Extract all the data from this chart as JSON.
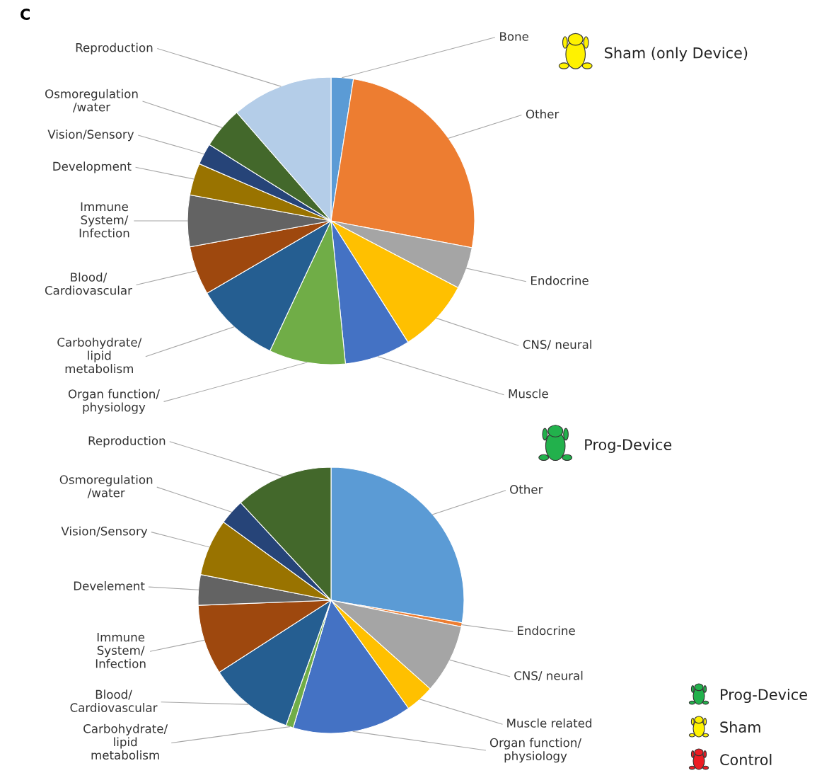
{
  "chart_data": [
    {
      "type": "pie",
      "title": "Sham (only Device)",
      "annotations": [
        "C"
      ],
      "categories": [
        "Bone",
        "Other",
        "Endocrine",
        "CNS/ neural",
        "Muscle",
        "Organ function/\nphysiology",
        "Carbohydrate/\nlipid\nmetabolism",
        "Blood/\nCardiovascular",
        "Immune\nSystem/\nInfection",
        "Development",
        "Vision/Sensory",
        "Osmoregulation\n/water",
        "Reproduction"
      ],
      "values": [
        2.5,
        25.5,
        4.7,
        8.3,
        7.4,
        8.6,
        9.6,
        5.5,
        5.8,
        3.6,
        2.4,
        4.7,
        11.4
      ],
      "colors": [
        "#5b9bd5",
        "#ed7d31",
        "#a5a5a5",
        "#ffc000",
        "#4472c4",
        "#70ad47",
        "#255e91",
        "#9e480e",
        "#636363",
        "#997300",
        "#264478",
        "#43682b",
        "#b4cde8"
      ]
    },
    {
      "type": "pie",
      "title": "Prog-Device",
      "annotations": [
        "Prog-Device",
        "Sham",
        "Control"
      ],
      "categories": [
        "Other",
        "Endocrine",
        "CNS/ neural",
        "Muscle related",
        "Organ function/\nphysiology",
        "Carbohydrate/\nlipid\nmetabolism",
        "Blood/\nCardiovascular",
        "Immune\nSystem/\nInfection",
        "Develement",
        "Vision/Sensory",
        "Osmoregulation\n/water",
        "Reproduction"
      ],
      "values": [
        27.7,
        0.5,
        8.4,
        3.5,
        14.5,
        0.9,
        10.4,
        8.5,
        3.7,
        6.9,
        3.1,
        11.9
      ],
      "colors": [
        "#5b9bd5",
        "#ed7d31",
        "#a5a5a5",
        "#ffc000",
        "#4472c4",
        "#70ad47",
        "#255e91",
        "#9e480e",
        "#636363",
        "#997300",
        "#264478",
        "#43682b"
      ]
    }
  ]
}
